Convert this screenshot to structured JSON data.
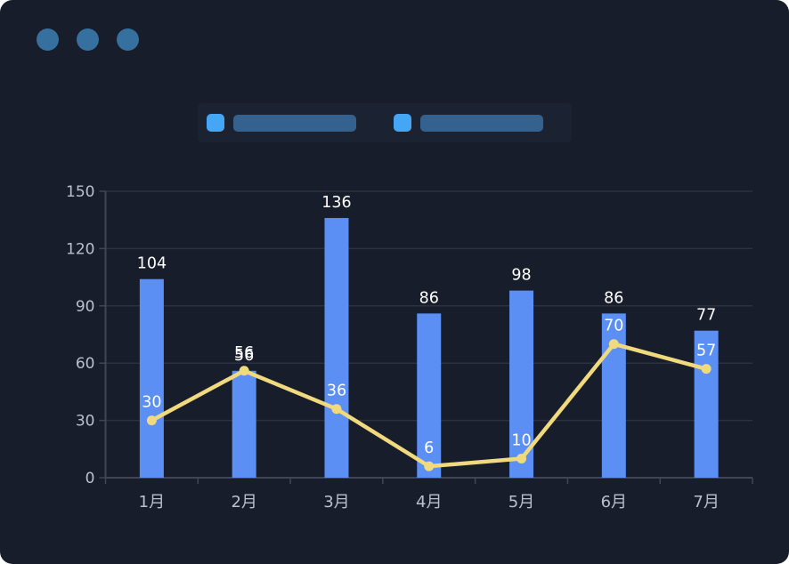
{
  "window": {
    "dots": [
      "window-dot-1",
      "window-dot-2",
      "window-dot-3"
    ],
    "dot_color": "#35709e",
    "background_color": "#171d2a"
  },
  "legend": {
    "items": [
      {
        "label": "",
        "redacted": true,
        "swatch_color": "#45a6f5",
        "placeholder_color": "#35618f"
      },
      {
        "label": "",
        "redacted": true,
        "swatch_color": "#45a6f5",
        "placeholder_color": "#35618f"
      }
    ]
  },
  "chart_data": {
    "type": "bar",
    "combo_types": [
      "bar",
      "line"
    ],
    "title": "",
    "xlabel": "",
    "ylabel": "",
    "categories": [
      "1月",
      "2月",
      "3月",
      "4月",
      "5月",
      "6月",
      "7月"
    ],
    "series": [
      {
        "name": "",
        "type": "bar",
        "color": "#5c8ff3",
        "values": [
          104,
          56,
          136,
          86,
          98,
          86,
          77
        ],
        "label_color": "#ffffff"
      },
      {
        "name": "",
        "type": "line",
        "color": "#f0da7d",
        "values": [
          30,
          56,
          36,
          6,
          10,
          70,
          57
        ],
        "label_color": "#ffffff"
      }
    ],
    "ylim": [
      0,
      150
    ],
    "yticks": [
      0,
      30,
      60,
      90,
      120,
      150
    ],
    "grid": true,
    "legend_position": "top",
    "colors": {
      "axis_label": "#bac1cc",
      "value_label": "#ffffff",
      "grid_line": "#2b3140",
      "axis_line": "#3f4757",
      "background": "#171d2a"
    }
  }
}
